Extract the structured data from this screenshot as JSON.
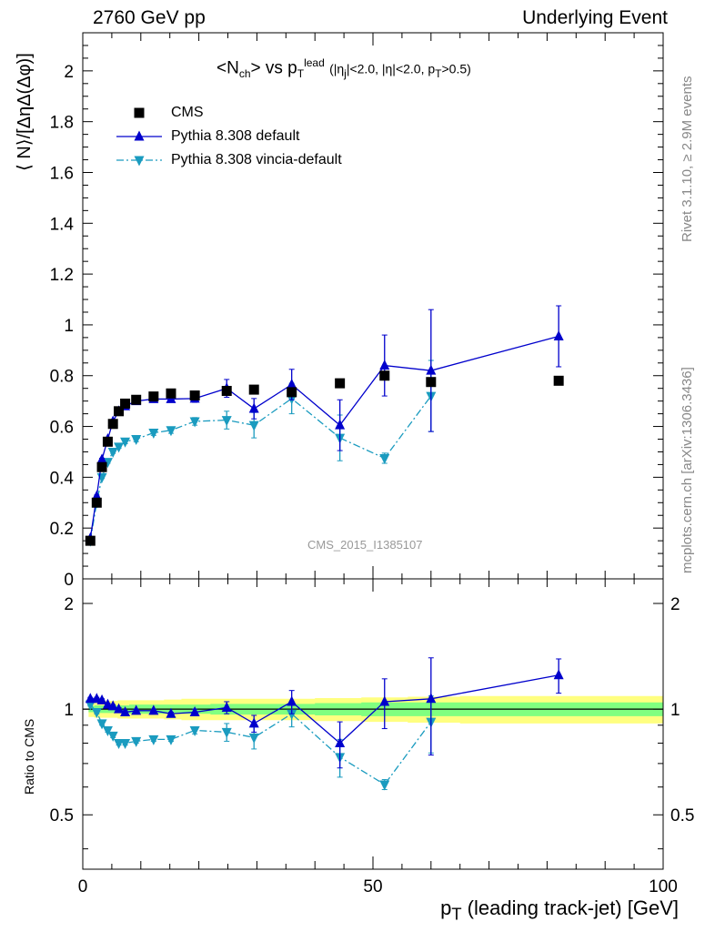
{
  "header": {
    "left": "2760 GeV pp",
    "right": "Underlying Event"
  },
  "side": {
    "rivet": "Rivet 3.1.10, ≥ 2.9M events",
    "mcplots": "mcplots.cern.ch [arXiv:1306.3436]"
  },
  "watermark": "CMS_2015_I1385107",
  "colors": {
    "data": "#000000",
    "default": "#0000cc",
    "vincia": "#1a9bbf",
    "band_inner": "#80ff80",
    "band_outer": "#ffff80"
  },
  "chart_data": [
    {
      "type": "line",
      "title": "<N_ch> vs p_T^lead (|η_j|<2.0, |η|<2.0, p_T>0.5)",
      "title_parts": {
        "main": "<N",
        "main_sub": "ch",
        "mid": "> vs p",
        "p_sub": "T",
        "p_sup": "lead",
        "cuts_open": "(|η",
        "cuts_sub": "j",
        "cuts_mid": "|<2.0, |η|<2.0, p",
        "cuts_sub2": "T",
        "cuts_close": ">0.5)"
      },
      "ylabel": "⟨ N⟩/[ΔηΔ(Δφ)]",
      "xlim": [
        0,
        100
      ],
      "ylim": [
        0,
        2.15
      ],
      "yticks": [
        0,
        0.2,
        0.4,
        0.6,
        0.8,
        1,
        1.2,
        1.4,
        1.6,
        1.8,
        2
      ],
      "ytick_labels": [
        "0",
        "0.2",
        "0.4",
        "0.6",
        "0.8",
        "1",
        "1.2",
        "1.4",
        "1.6",
        "1.8",
        "2"
      ],
      "legend_position": "top-left",
      "series": [
        {
          "name": "CMS",
          "marker": "square",
          "x": [
            1.3,
            2.4,
            3.3,
            4.3,
            5.2,
            6.2,
            7.3,
            9.2,
            12.2,
            15.2,
            19.3,
            24.8,
            29.5,
            36.0,
            44.3,
            52.0,
            60.0,
            82.0
          ],
          "y": [
            0.15,
            0.3,
            0.44,
            0.54,
            0.61,
            0.66,
            0.69,
            0.705,
            0.718,
            0.73,
            0.722,
            0.74,
            0.745,
            0.735,
            0.77,
            0.8,
            0.775,
            0.78
          ]
        },
        {
          "name": "Pythia 8.308 default",
          "marker": "triangle-up",
          "x": [
            1.3,
            2.4,
            3.3,
            4.3,
            5.2,
            6.2,
            7.3,
            9.2,
            12.2,
            15.2,
            19.3,
            24.8,
            29.5,
            36.0,
            44.3,
            52.0,
            60.0,
            82.0
          ],
          "y": [
            0.16,
            0.325,
            0.47,
            0.55,
            0.62,
            0.66,
            0.68,
            0.7,
            0.708,
            0.708,
            0.71,
            0.75,
            0.67,
            0.765,
            0.605,
            0.84,
            0.82,
            0.955
          ],
          "err": [
            0.005,
            0.005,
            0.005,
            0.005,
            0.005,
            0.005,
            0.01,
            0.01,
            0.01,
            0.012,
            0.015,
            0.035,
            0.04,
            0.06,
            0.1,
            0.12,
            0.24,
            0.12
          ]
        },
        {
          "name": "Pythia 8.308 vincia-default",
          "marker": "triangle-down",
          "x": [
            1.3,
            2.4,
            3.3,
            4.3,
            5.2,
            6.2,
            7.3,
            9.2,
            12.2,
            15.2,
            19.3,
            24.8,
            29.5,
            36.0,
            44.3,
            52.0,
            60.0,
            82.0
          ],
          "y": [
            0.15,
            0.3,
            0.4,
            0.46,
            0.5,
            0.52,
            0.54,
            0.55,
            0.575,
            0.585,
            0.62,
            0.625,
            0.605,
            0.71,
            0.555,
            0.475,
            0.72,
            null
          ],
          "err": [
            0.005,
            0.005,
            0.005,
            0.005,
            0.006,
            0.006,
            0.008,
            0.01,
            0.01,
            0.012,
            0.015,
            0.035,
            0.05,
            0.06,
            0.09,
            0.02,
            0.14,
            null
          ]
        }
      ]
    },
    {
      "type": "line",
      "title": "",
      "ylabel": "Ratio to CMS",
      "xlabel": "p_T (leading track-jet) [GeV]",
      "xlabel_parts": {
        "p": "p",
        "p_sub": "T",
        "rest": " (leading track-jet) [GeV]"
      },
      "xlim": [
        0,
        100
      ],
      "ylim": [
        0.35,
        2.35
      ],
      "log_scale_y": true,
      "yticks": [
        0.5,
        1,
        2
      ],
      "ytick_labels": [
        "0.5",
        "1",
        "2"
      ],
      "xticks": [
        0,
        50,
        100
      ],
      "xtick_labels": [
        "0",
        "50",
        "100"
      ],
      "band": {
        "x": [
          1,
          2,
          3,
          4,
          6,
          8,
          10,
          14,
          17,
          22,
          27,
          33,
          40,
          48,
          56,
          65,
          100
        ],
        "inner": [
          0.02,
          0.025,
          0.025,
          0.025,
          0.025,
          0.03,
          0.03,
          0.03,
          0.03,
          0.035,
          0.035,
          0.035,
          0.04,
          0.045,
          0.045,
          0.045,
          0.045
        ],
        "outer": [
          0.05,
          0.055,
          0.055,
          0.055,
          0.06,
          0.06,
          0.06,
          0.065,
          0.07,
          0.07,
          0.07,
          0.07,
          0.075,
          0.08,
          0.085,
          0.09,
          0.09
        ]
      },
      "series": [
        {
          "name": "Pythia 8.308 default",
          "marker": "triangle-up",
          "x": [
            1.3,
            2.4,
            3.3,
            4.3,
            5.2,
            6.2,
            7.3,
            9.2,
            12.2,
            15.2,
            19.3,
            24.8,
            29.5,
            36.0,
            44.3,
            52.0,
            60.0,
            82.0
          ],
          "y": [
            1.07,
            1.07,
            1.06,
            1.03,
            1.02,
            1.0,
            0.98,
            0.99,
            0.99,
            0.97,
            0.98,
            1.01,
            0.91,
            1.05,
            0.8,
            1.05,
            1.07,
            1.25
          ],
          "err": [
            0.01,
            0.01,
            0.01,
            0.01,
            0.01,
            0.01,
            0.01,
            0.01,
            0.01,
            0.01,
            0.02,
            0.04,
            0.05,
            0.08,
            0.12,
            0.17,
            0.33,
            0.14
          ]
        },
        {
          "name": "Pythia 8.308 vincia-default",
          "marker": "triangle-down",
          "x": [
            1.3,
            2.4,
            3.3,
            4.3,
            5.2,
            6.2,
            7.3,
            9.2,
            12.2,
            15.2,
            19.3,
            24.8,
            29.5,
            36.0,
            44.3,
            52.0,
            60.0
          ],
          "y": [
            1.03,
            0.98,
            0.91,
            0.87,
            0.84,
            0.8,
            0.8,
            0.81,
            0.82,
            0.82,
            0.87,
            0.86,
            0.83,
            0.97,
            0.73,
            0.61,
            0.92
          ],
          "err": [
            0.01,
            0.01,
            0.01,
            0.01,
            0.01,
            0.01,
            0.01,
            0.01,
            0.01,
            0.01,
            0.02,
            0.05,
            0.06,
            0.08,
            0.09,
            0.02,
            0.17
          ]
        }
      ]
    }
  ]
}
